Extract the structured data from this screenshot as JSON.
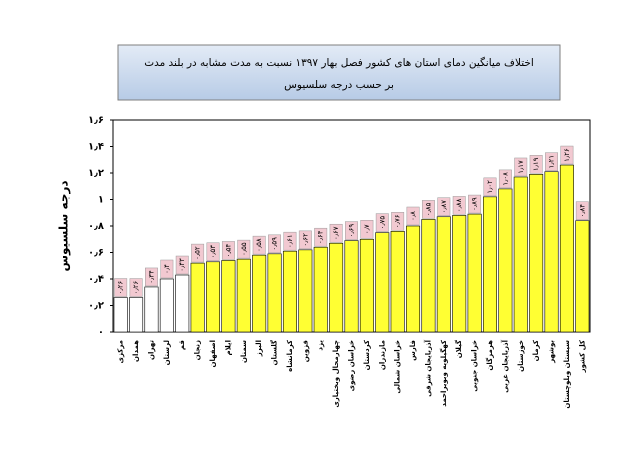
{
  "chart_data": {
    "type": "bar",
    "title": "اختلاف میانگین دمای استان های کشور فصل بهار ۱۳۹۷ نسبت به مدت مشابه در بلند مدت",
    "subtitle": "بر حسب درجه سلسیوس",
    "y_label": "درجه سلسیوس",
    "categories": [
      "مرکزی",
      "همدان",
      "تهران",
      "لرستان",
      "قم",
      "زنجان",
      "اصفهان",
      "ایلام",
      "سمنان",
      "البرز",
      "گلستان",
      "کرمانشاه",
      "قزوین",
      "یزد",
      "چهارمحال وبختیاری",
      "خراسان رضوی",
      "کردستان",
      "مازندران",
      "خراسان شمالی",
      "فارس",
      "آذربایجان شرقی",
      "کهگیلویه وبویراحمد",
      "گیلان",
      "خراسان جنوبی",
      "هرمزگان",
      "آذربایجان غربی",
      "خوزستان",
      "کرمان",
      "بوشهر",
      "سیستان وبلوچستان",
      "کل کشور"
    ],
    "values": [
      0.26,
      0.26,
      0.34,
      0.4,
      0.43,
      0.52,
      0.53,
      0.54,
      0.55,
      0.58,
      0.59,
      0.61,
      0.62,
      0.64,
      0.67,
      0.69,
      0.7,
      0.75,
      0.76,
      0.8,
      0.85,
      0.87,
      0.88,
      0.89,
      1.02,
      1.08,
      1.17,
      1.19,
      1.21,
      1.26,
      0.84
    ],
    "value_labels": [
      "۰٫۲۶",
      "۰٫۲۶",
      "۰٫۳۴",
      "۰٫۴",
      "۰٫۴۳",
      "۰٫۵۲",
      "۰٫۵۳",
      "۰٫۵۴",
      "۰٫۵۵",
      "۰٫۵۸",
      "۰٫۵۹",
      "۰٫۶۱",
      "۰٫۶۲",
      "۰٫۶۴",
      "۰٫۶۷",
      "۰٫۶۹",
      "۰٫۷",
      "۰٫۷۵",
      "۰٫۷۶",
      "۰٫۸",
      "۰٫۸۵",
      "۰٫۸۷",
      "۰٫۸۸",
      "۰٫۸۹",
      "۱٫۰۲",
      "۱٫۰۸",
      "۱٫۱۷",
      "۱٫۱۹",
      "۱٫۲۱",
      "۱٫۲۶",
      "۰٫۸۴"
    ],
    "colors": [
      "#ffffff",
      "#ffffff",
      "#ffffff",
      "#ffffff",
      "#ffffff",
      "#ffff33",
      "#ffff33",
      "#ffff33",
      "#ffff33",
      "#ffff33",
      "#ffff33",
      "#ffff33",
      "#ffff33",
      "#ffff33",
      "#ffff33",
      "#ffff33",
      "#ffff33",
      "#ffff33",
      "#ffff33",
      "#ffff33",
      "#ffff33",
      "#ffff33",
      "#ffff33",
      "#ffff33",
      "#ffff33",
      "#ffff33",
      "#ffff33",
      "#ffff33",
      "#ffff33",
      "#ffff33",
      "#ffff33"
    ],
    "ylim": [
      0,
      1.6
    ],
    "yticks": [
      {
        "value": 0,
        "label": "۰"
      },
      {
        "value": 0.2,
        "label": "۰٫۲"
      },
      {
        "value": 0.4,
        "label": "۰٫۴"
      },
      {
        "value": 0.6,
        "label": "۰٫۶"
      },
      {
        "value": 0.8,
        "label": "۰٫۸"
      },
      {
        "value": 1,
        "label": "۱"
      },
      {
        "value": 1.2,
        "label": "۱٫۲"
      },
      {
        "value": 1.4,
        "label": "۱٫۴"
      },
      {
        "value": 1.6,
        "label": "۱٫۶"
      }
    ],
    "grid": false
  }
}
